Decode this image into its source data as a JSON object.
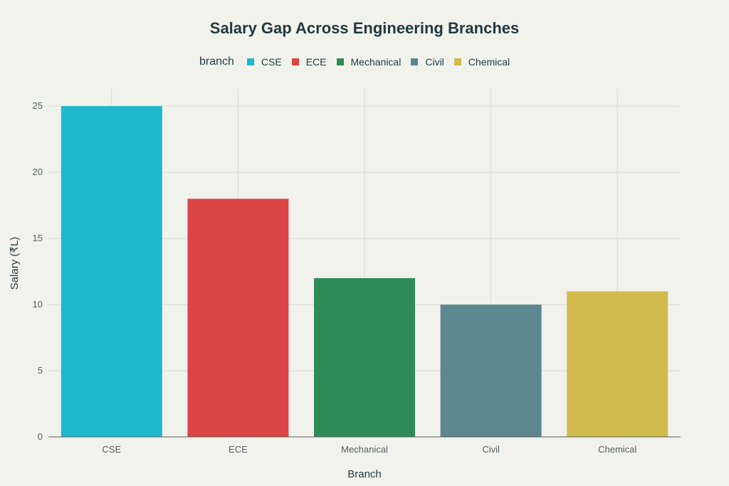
{
  "chart_data": {
    "type": "bar",
    "title": "Salary Gap Across Engineering Branches",
    "legend_title": "branch",
    "xlabel": "Branch",
    "ylabel": "Salary (₹L)",
    "categories": [
      "CSE",
      "ECE",
      "Mechanical",
      "Civil",
      "Chemical"
    ],
    "values": [
      25,
      18,
      12,
      10,
      11
    ],
    "colors": [
      "#1fb8cd",
      "#db4545",
      "#2e8b57",
      "#5d878f",
      "#d2ba4c"
    ],
    "ylim": [
      0,
      26.3
    ],
    "yticks": [
      0,
      5,
      10,
      15,
      20,
      25
    ],
    "grid": true,
    "legend_position": "top"
  }
}
